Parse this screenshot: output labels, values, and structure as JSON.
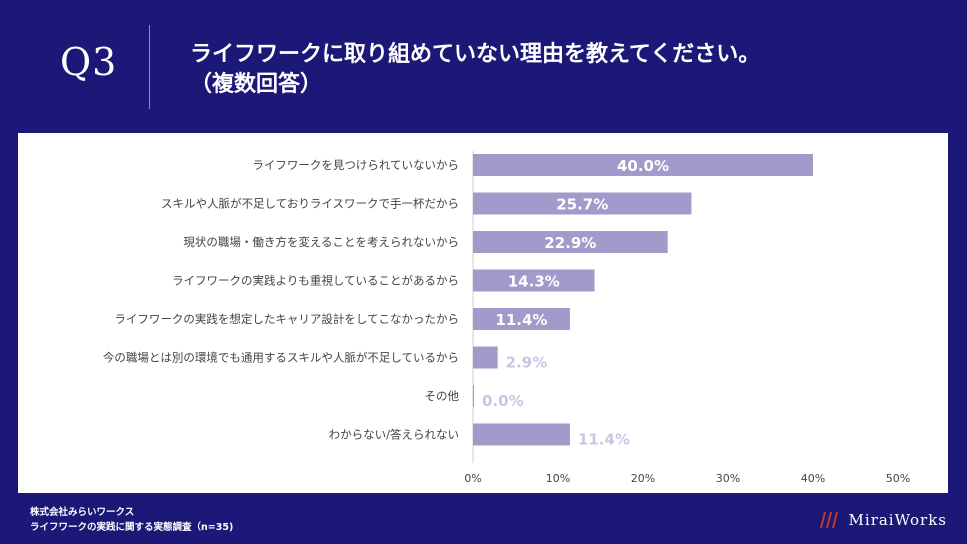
{
  "header": {
    "question": "Q3",
    "title_line1": "ライフワークに取り組めていない理由を教えてください。",
    "title_line2": "（複数回答）"
  },
  "chart_data": {
    "type": "bar",
    "orientation": "horizontal",
    "categories": [
      "ライフワークを見つけられていないから",
      "スキルや人脈が不足しておりライスワークで手一杯だから",
      "現状の職場・働き方を変えることを考えられないから",
      "ライフワークの実践よりも重視していることがあるから",
      "ライフワークの実践を想定したキャリア設計をしてこなかったから",
      "今の職場とは別の環境でも通用するスキルや人脈が不足しているから",
      "その他",
      "わからない/答えられない"
    ],
    "values": [
      40.0,
      25.7,
      22.9,
      14.3,
      11.4,
      2.9,
      0.0,
      11.4
    ],
    "value_labels": [
      "40.0%",
      "25.7%",
      "22.9%",
      "14.3%",
      "11.4%",
      "2.9%",
      "0.0%",
      "11.4%"
    ],
    "xlim": [
      0,
      50
    ],
    "xticks": [
      "0%",
      "10%",
      "20%",
      "30%",
      "40%",
      "50%"
    ],
    "grid": false,
    "bar_color": "#a09bcb"
  },
  "footer": {
    "company": "株式会社みらいワークス",
    "survey": "ライフワークの実践に関する実態調査（n=35)"
  },
  "logo": {
    "text": "MiraiWorks",
    "icon": "miraiworks-logo-icon",
    "mark_color": "#c0392b"
  }
}
